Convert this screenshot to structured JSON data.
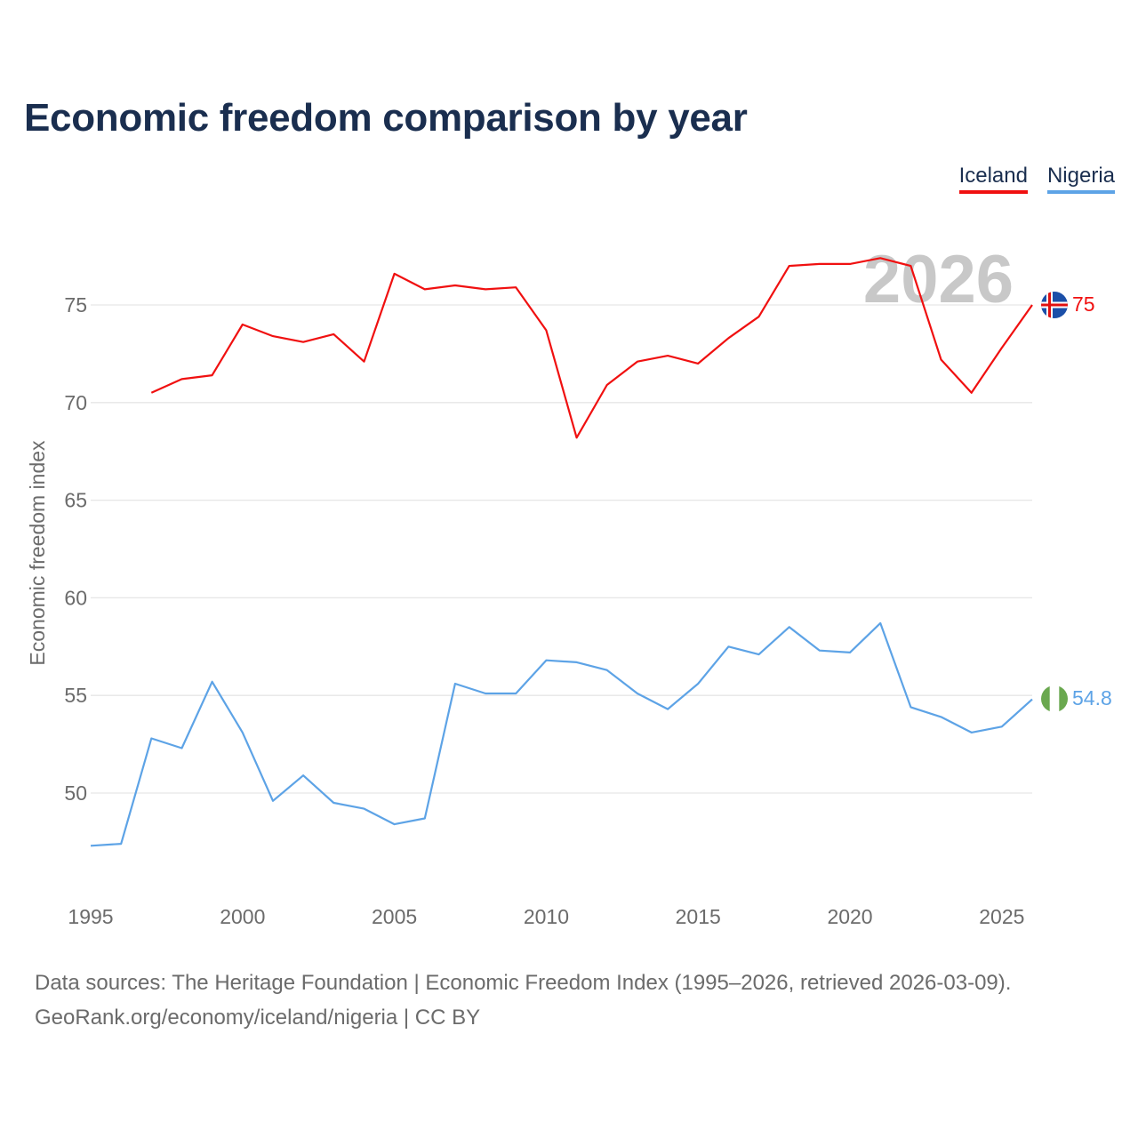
{
  "title": "Economic freedom comparison by year",
  "legend": [
    {
      "name": "Iceland",
      "color": "#f01010"
    },
    {
      "name": "Nigeria",
      "color": "#5da3e6"
    }
  ],
  "year_watermark": "2026",
  "footer": {
    "line1": "Data sources: The Heritage Foundation | Economic Freedom Index (1995–2026, retrieved 2026-03-09).",
    "line2": "GeoRank.org/economy/iceland/nigeria | CC BY"
  },
  "chart_data": {
    "type": "line",
    "title": "Economic freedom comparison by year",
    "xlabel": "",
    "ylabel": "Economic freedom index",
    "xlim": [
      1995,
      2026
    ],
    "ylim": [
      45,
      79
    ],
    "x_ticks": [
      1995,
      2000,
      2005,
      2010,
      2015,
      2020,
      2025
    ],
    "y_ticks": [
      50,
      55,
      60,
      65,
      70,
      75
    ],
    "grid": true,
    "series": [
      {
        "name": "Iceland",
        "color": "#f01010",
        "flag": "iceland-flag",
        "end_label": "75",
        "x": [
          1997,
          1998,
          1999,
          2000,
          2001,
          2002,
          2003,
          2004,
          2005,
          2006,
          2007,
          2008,
          2009,
          2010,
          2011,
          2012,
          2013,
          2014,
          2015,
          2016,
          2017,
          2018,
          2019,
          2020,
          2021,
          2022,
          2023,
          2024,
          2025,
          2026
        ],
        "values": [
          70.5,
          71.2,
          71.4,
          74.0,
          73.4,
          73.1,
          73.5,
          72.1,
          76.6,
          75.8,
          76.0,
          75.8,
          75.9,
          73.7,
          68.2,
          70.9,
          72.1,
          72.4,
          72.0,
          73.3,
          74.4,
          77.0,
          77.1,
          77.1,
          77.4,
          77.0,
          72.2,
          70.5,
          72.8,
          75.0
        ]
      },
      {
        "name": "Nigeria",
        "color": "#5da3e6",
        "flag": "nigeria-flag",
        "end_label": "54.8",
        "x": [
          1995,
          1996,
          1997,
          1998,
          1999,
          2000,
          2001,
          2002,
          2003,
          2004,
          2005,
          2006,
          2007,
          2008,
          2009,
          2010,
          2011,
          2012,
          2013,
          2014,
          2015,
          2016,
          2017,
          2018,
          2019,
          2020,
          2021,
          2022,
          2023,
          2024,
          2025,
          2026
        ],
        "values": [
          47.3,
          47.4,
          52.8,
          52.3,
          55.7,
          53.1,
          49.6,
          50.9,
          49.5,
          49.2,
          48.4,
          48.7,
          55.6,
          55.1,
          55.1,
          56.8,
          56.7,
          56.3,
          55.1,
          54.3,
          55.6,
          57.5,
          57.1,
          58.5,
          57.3,
          57.2,
          58.7,
          54.4,
          53.9,
          53.1,
          53.4,
          54.8
        ]
      }
    ]
  }
}
